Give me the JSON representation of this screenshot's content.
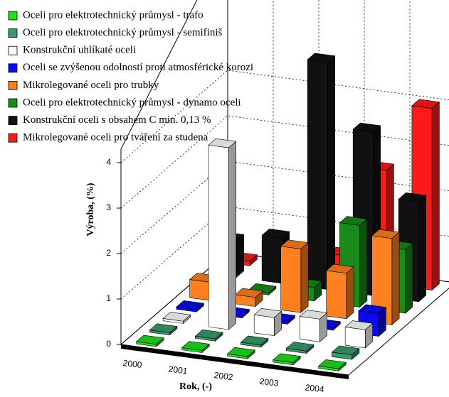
{
  "chart_data": {
    "type": "bar3d",
    "x_label": "Rok, (-)",
    "y_label": "Výroba, (%)",
    "categories": [
      "2000",
      "2001",
      "2002",
      "2003",
      "2004"
    ],
    "ylim": [
      0,
      4
    ],
    "yticks": [
      0,
      1,
      2,
      3,
      4
    ],
    "grid": true,
    "series": [
      {
        "name": "Oceli pro elektrotechnický průmysl - trafo",
        "color": "#22dd22",
        "values": [
          0.05,
          0.05,
          0.05,
          0.05,
          0.05
        ]
      },
      {
        "name": "Oceli pro elektrotechnický průmysl - semifiniš",
        "color": "#3a9a6a",
        "values": [
          0.05,
          0.05,
          0.05,
          0.05,
          0.1
        ]
      },
      {
        "name": "Konstrukční uhlíkaté oceli",
        "color": "#ffffff",
        "values": [
          0.05,
          4.0,
          0.4,
          0.5,
          0.4
        ]
      },
      {
        "name": "Oceli se zvýšenou odolností proti atmosférické korozi",
        "color": "#0a0aee",
        "values": [
          0.05,
          0.05,
          0.05,
          0.05,
          0.5
        ]
      },
      {
        "name": "Mikrolegované oceli pro trubky",
        "color": "#ff8020",
        "values": [
          0.4,
          0.2,
          1.4,
          1.0,
          1.9
        ]
      },
      {
        "name": "Oceli pro elektrotechnický průmysl - dynamo oceli",
        "color": "#1a8a1a",
        "values": [
          0.05,
          0.05,
          0.3,
          1.8,
          1.4
        ]
      },
      {
        "name": "Konstrukční oceli s obsahem C min. 0,13 %",
        "color": "#111111",
        "values": [
          0.8,
          1.0,
          5.0,
          3.6,
          2.2
        ]
      },
      {
        "name": "Mikrolegované oceli pro tváření za studena",
        "color": "#ff1a1a",
        "values": [
          0.1,
          0.05,
          0.5,
          2.5,
          4.0
        ]
      }
    ]
  }
}
